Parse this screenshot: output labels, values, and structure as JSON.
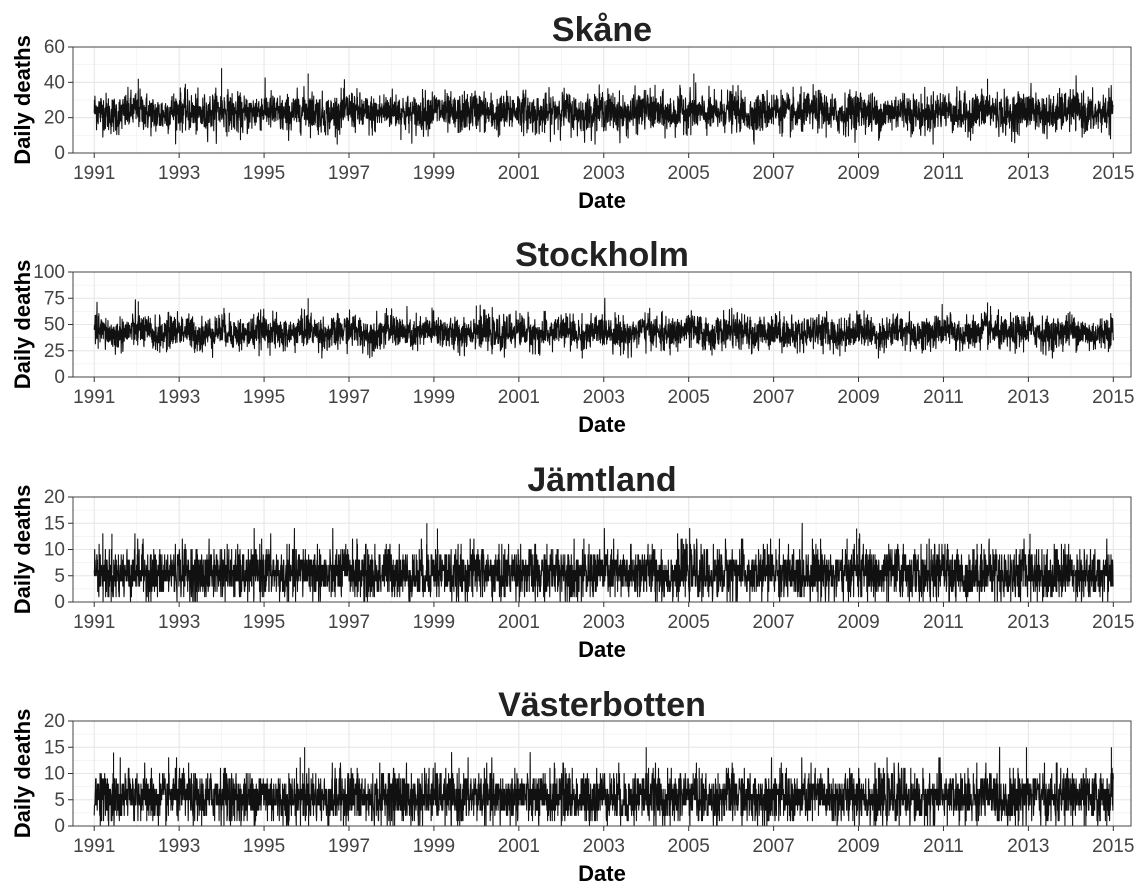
{
  "chart_data": [
    {
      "type": "line",
      "title": "Skåne",
      "xlabel": "Date",
      "ylabel": "Daily deaths",
      "xlim": [
        "1990-07-01",
        "2015-06-01"
      ],
      "ylim": [
        0,
        60
      ],
      "xticks": [
        "1991",
        "1993",
        "1995",
        "1997",
        "1999",
        "2001",
        "2003",
        "2005",
        "2007",
        "2009",
        "2011",
        "2013",
        "2015"
      ],
      "yticks": [
        "0",
        "20",
        "40",
        "60"
      ],
      "grid": true,
      "legend": "none",
      "series": [
        {
          "x_start": "1991-01-01",
          "x_end": "2014-12-31",
          "frequency": "daily",
          "typical_range": [
            13,
            33
          ],
          "y_min": 5,
          "y_max": 48,
          "mean": 22,
          "peaks": [
            {
              "x": "1993-12-31",
              "y": 48
            },
            {
              "x": "1996-01-15",
              "y": 45
            },
            {
              "x": "2005-02-15",
              "y": 45
            },
            {
              "x": "2012-01-15",
              "y": 42
            },
            {
              "x": "1992-01-15",
              "y": 42
            }
          ]
        }
      ]
    },
    {
      "type": "line",
      "title": "Stockholm",
      "xlabel": "Date",
      "ylabel": "Daily deaths",
      "xlim": [
        "1990-07-01",
        "2015-06-01"
      ],
      "ylim": [
        0,
        100
      ],
      "xticks": [
        "1991",
        "1993",
        "1995",
        "1997",
        "1999",
        "2001",
        "2003",
        "2005",
        "2007",
        "2009",
        "2011",
        "2013",
        "2015"
      ],
      "yticks": [
        "0",
        "25",
        "50",
        "75",
        "100"
      ],
      "grid": true,
      "legend": "none",
      "series": [
        {
          "x_start": "1991-01-01",
          "x_end": "2014-12-31",
          "frequency": "daily",
          "typical_range": [
            28,
            57
          ],
          "y_min": 18,
          "y_max": 75,
          "mean": 41,
          "peaks": [
            {
              "x": "1996-01-15",
              "y": 75
            },
            {
              "x": "1992-01-15",
              "y": 72
            },
            {
              "x": "2012-01-15",
              "y": 71
            },
            {
              "x": "1999-12-31",
              "y": 68
            },
            {
              "x": "1998-12-15",
              "y": 66
            }
          ]
        }
      ]
    },
    {
      "type": "line",
      "title": "Jämtland",
      "xlabel": "Date",
      "ylabel": "Daily deaths",
      "xlim": [
        "1990-07-01",
        "2015-06-01"
      ],
      "ylim": [
        0,
        20
      ],
      "xticks": [
        "1991",
        "1993",
        "1995",
        "1997",
        "1999",
        "2001",
        "2003",
        "2005",
        "2007",
        "2009",
        "2011",
        "2013",
        "2015"
      ],
      "yticks": [
        "0",
        "5",
        "10",
        "15",
        "20"
      ],
      "grid": true,
      "legend": "none",
      "series": [
        {
          "x_start": "1991-01-01",
          "x_end": "2014-12-31",
          "frequency": "daily",
          "typical_range": [
            1,
            10
          ],
          "y_min": 0,
          "y_max": 15,
          "mean": 4.5,
          "peaks": [
            {
              "x": "1998-11-01",
              "y": 15
            },
            {
              "x": "1999-02-01",
              "y": 14
            },
            {
              "x": "1991-06-01",
              "y": 13
            },
            {
              "x": "2013-01-15",
              "y": 13
            },
            {
              "x": "2008-12-15",
              "y": 14
            }
          ]
        }
      ]
    },
    {
      "type": "line",
      "title": "Västerbotten",
      "xlabel": "Date",
      "ylabel": "Daily deaths",
      "xlim": [
        "1990-07-01",
        "2015-06-01"
      ],
      "ylim": [
        0,
        20
      ],
      "xticks": [
        "1991",
        "1993",
        "1995",
        "1997",
        "1999",
        "2001",
        "2003",
        "2005",
        "2007",
        "2009",
        "2011",
        "2013",
        "2015"
      ],
      "yticks": [
        "0",
        "5",
        "10",
        "15",
        "20"
      ],
      "grid": true,
      "legend": "none",
      "series": [
        {
          "x_start": "1991-01-01",
          "x_end": "2014-12-31",
          "frequency": "daily",
          "typical_range": [
            1,
            10
          ],
          "y_min": 0,
          "y_max": 15,
          "mean": 5,
          "peaks": [
            {
              "x": "1995-12-15",
              "y": 15
            },
            {
              "x": "2004-01-01",
              "y": 15
            },
            {
              "x": "2012-12-15",
              "y": 15
            },
            {
              "x": "2014-12-15",
              "y": 15
            },
            {
              "x": "1991-06-15",
              "y": 14
            }
          ]
        }
      ]
    }
  ]
}
